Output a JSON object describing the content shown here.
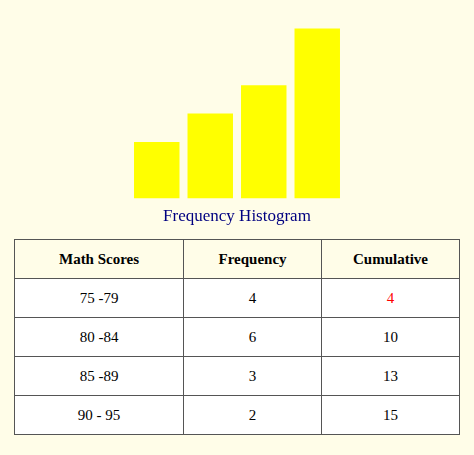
{
  "chart_data": {
    "type": "bar",
    "title": "Frequency Histogram",
    "categories": [
      null,
      null,
      null,
      null
    ],
    "values": [
      2,
      3,
      4,
      6
    ],
    "color": "#FFFF00",
    "ylim": [
      0,
      6.3
    ],
    "grid": false,
    "legend": false,
    "tick_labels": false,
    "table": {
      "columns": [
        "Math Scores",
        "Frequency",
        "Cumulative"
      ],
      "rows": [
        [
          "75 -79",
          "4",
          "4"
        ],
        [
          "80 -84",
          "6",
          "10"
        ],
        [
          "85 -89",
          "3",
          "13"
        ],
        [
          "90 - 95",
          "2",
          "15"
        ]
      ],
      "colors": [
        [
          "#000000",
          "#000000",
          "#FF0000"
        ],
        [
          "#000000",
          "#000000",
          "#000000"
        ],
        [
          "#000000",
          "#000000",
          "#000000"
        ],
        [
          "#000000",
          "#000000",
          "#000000"
        ]
      ]
    }
  }
}
